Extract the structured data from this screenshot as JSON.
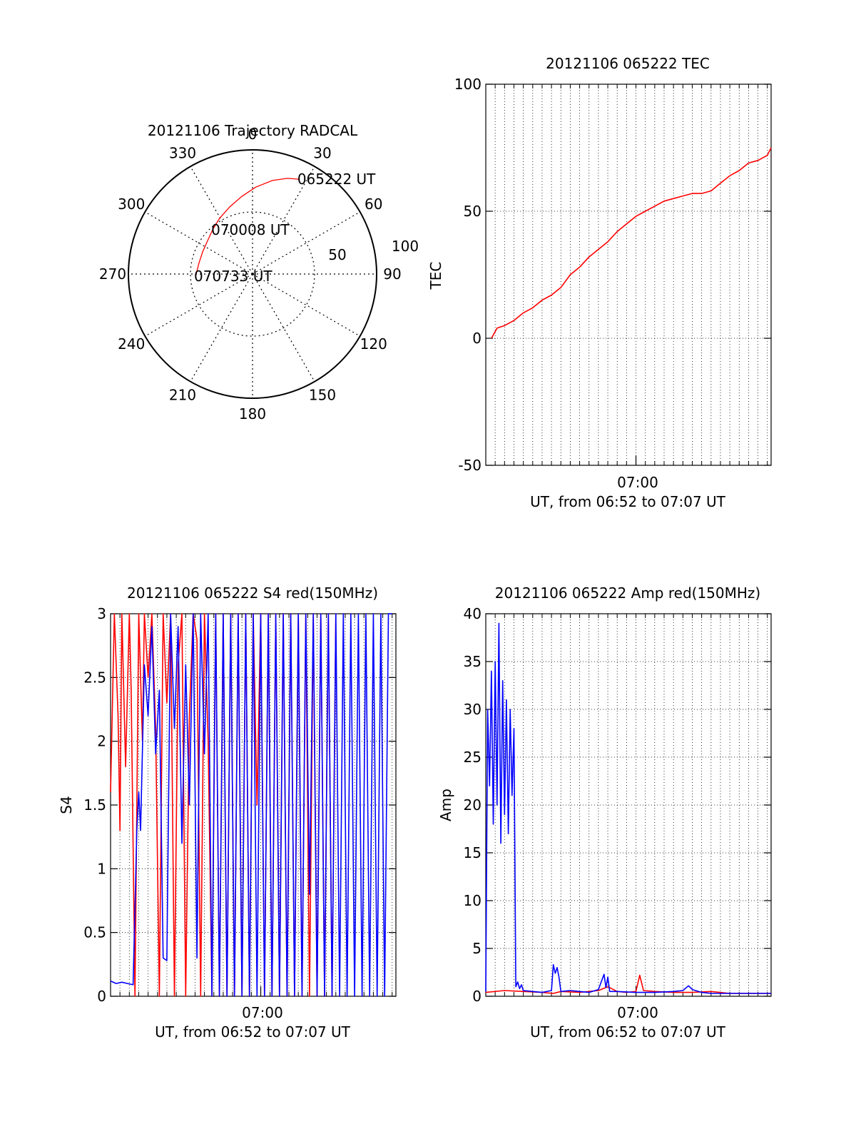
{
  "colors": {
    "red": "#ff0000",
    "blue": "#0000ff",
    "axis": "#000000"
  },
  "chart_data": [
    {
      "id": "trajectory",
      "type": "polar",
      "title": "20121106 Trajectory RADCAL",
      "angle_labels": [
        "0",
        "30",
        "60",
        "90",
        "120",
        "150",
        "180",
        "210",
        "240",
        "270",
        "300",
        "330"
      ],
      "radial_labels": [
        "50",
        "100"
      ],
      "radial_max": 100,
      "series": [
        {
          "color": "red",
          "points": [
            [
              26,
              85
            ],
            [
              20,
              82
            ],
            [
              12,
              77
            ],
            [
              2,
              70
            ],
            [
              -8,
              63
            ],
            [
              -19,
              57
            ],
            [
              -31,
              52
            ],
            [
              -42,
              48
            ],
            [
              -54,
              45
            ],
            [
              -66,
              44
            ],
            [
              -78,
              44
            ],
            [
              -88,
              45
            ],
            [
              -92,
              46
            ]
          ]
        }
      ],
      "annotations": [
        {
          "text": "065222 UT",
          "az": 26,
          "r": 85
        },
        {
          "text": "070008 UT",
          "az": -42,
          "r": 48
        },
        {
          "text": "070733 UT",
          "az": -92,
          "r": 46
        }
      ]
    },
    {
      "id": "tec",
      "type": "line",
      "title": "20121106 065222 TEC",
      "ylabel": "TEC",
      "xlabel": "UT, from 06:52 to 07:07 UT",
      "xtick_label": "07:00",
      "xlim": [
        0,
        15.2
      ],
      "xtick_value": 8,
      "ylim": [
        -50,
        100
      ],
      "yticks": [
        -50,
        0,
        50,
        100
      ],
      "series": [
        {
          "color": "red",
          "x": [
            0.3,
            0.6,
            1.0,
            1.5,
            2.0,
            2.5,
            3.0,
            3.5,
            4.0,
            4.5,
            5.0,
            5.5,
            6.0,
            6.5,
            7.0,
            7.5,
            8.0,
            8.5,
            9.0,
            9.5,
            10.0,
            10.5,
            11.0,
            11.5,
            12.0,
            12.5,
            13.0,
            13.5,
            14.0,
            14.5,
            15.0,
            15.2
          ],
          "y": [
            0,
            4,
            5,
            7,
            10,
            12,
            15,
            17,
            20,
            25,
            28,
            32,
            35,
            38,
            42,
            45,
            48,
            50,
            52,
            54,
            55,
            56,
            57,
            57,
            58,
            61,
            64,
            66,
            69,
            70,
            72,
            75
          ]
        }
      ]
    },
    {
      "id": "s4",
      "type": "line",
      "title": "20121106 065222 S4 red(150MHz)",
      "ylabel": "S4",
      "xlabel": "UT, from 06:52 to 07:07 UT",
      "xtick_label": "07:00",
      "xlim": [
        0,
        15.2
      ],
      "xtick_value": 8,
      "ylim": [
        0,
        3
      ],
      "yticks": [
        0,
        0.5,
        1,
        1.5,
        2,
        2.5,
        3
      ],
      "ytick_labels": [
        "0",
        "0.5",
        "1",
        "1.5",
        "2",
        "2.5",
        "3"
      ],
      "series": [
        {
          "color": "red",
          "x": [
            0.0,
            0.2,
            0.4,
            0.5,
            0.6,
            0.8,
            1.0,
            1.1,
            1.3,
            1.5,
            1.7,
            1.8,
            2.0,
            2.2,
            2.4,
            2.6,
            2.8,
            3.0,
            3.2,
            3.4,
            3.6,
            3.8,
            4.0,
            4.2,
            4.4,
            4.6,
            4.8,
            5.0,
            5.2,
            5.4,
            5.6,
            5.8,
            6.0,
            6.2,
            6.4,
            6.6,
            6.8,
            7.0,
            7.2,
            7.4,
            7.6,
            7.8,
            8.0,
            8.2,
            8.4,
            8.6,
            8.8,
            9.0,
            9.2,
            9.4,
            9.6,
            9.8,
            10.0,
            10.2,
            10.4,
            10.6,
            10.8,
            11.0,
            11.2,
            11.4,
            11.6,
            11.8,
            12.0
          ],
          "y": [
            1.6,
            3.0,
            2.2,
            1.3,
            3.0,
            1.8,
            3.0,
            2.4,
            0.0,
            3.0,
            2.0,
            3.0,
            2.5,
            3.0,
            2.1,
            0.0,
            3.0,
            2.3,
            3.0,
            0.0,
            2.6,
            3.0,
            0.0,
            2.2,
            3.0,
            2.8,
            0.0,
            3.0,
            2.0,
            0.0,
            3.0,
            0.0,
            3.0,
            0.0,
            3.0,
            0.0,
            3.0,
            0.0,
            3.0,
            0.0,
            3.0,
            1.5,
            3.0,
            0.0,
            3.0,
            0.0,
            3.0,
            0.0,
            3.0,
            0.0,
            3.0,
            0.0,
            3.0,
            0.0,
            3.0,
            0.0,
            3.0,
            0.0,
            3.0,
            0.0,
            3.0,
            0.0,
            3.0
          ]
        },
        {
          "color": "blue",
          "x": [
            0.0,
            0.3,
            0.6,
            0.9,
            1.2,
            1.4,
            1.5,
            1.6,
            1.8,
            2.0,
            2.2,
            2.4,
            2.6,
            2.8,
            3.0,
            3.2,
            3.4,
            3.6,
            3.8,
            4.0,
            4.2,
            4.4,
            4.6,
            4.8,
            5.0,
            5.2,
            5.4,
            5.6,
            5.8,
            6.0,
            6.2,
            6.4,
            6.6,
            6.8,
            7.0,
            7.2,
            7.4,
            7.6,
            7.8,
            8.0,
            8.2,
            8.4,
            8.6,
            8.8,
            9.0,
            9.2,
            9.4,
            9.6,
            9.8,
            10.0,
            10.2,
            10.4,
            10.6,
            10.8,
            11.0,
            11.2,
            11.4,
            11.6,
            11.8,
            12.0,
            12.2,
            12.4,
            12.6,
            12.8,
            13.0,
            13.2,
            13.4,
            13.6,
            13.8,
            14.0,
            14.2,
            14.4,
            14.6,
            14.8,
            15.0
          ],
          "y": [
            0.12,
            0.1,
            0.11,
            0.1,
            0.09,
            1.3,
            1.6,
            1.3,
            2.6,
            2.2,
            2.9,
            1.9,
            2.4,
            0.3,
            0.28,
            3.0,
            2.1,
            2.9,
            1.2,
            2.6,
            1.5,
            3.0,
            0.3,
            3.0,
            1.9,
            3.0,
            0.0,
            3.0,
            0.0,
            3.0,
            0.0,
            3.0,
            0.0,
            3.0,
            0.0,
            3.0,
            0.0,
            3.0,
            0.0,
            3.0,
            0.0,
            3.0,
            0.0,
            3.0,
            0.0,
            3.0,
            0.0,
            3.0,
            0.0,
            3.0,
            0.0,
            3.0,
            0.8,
            3.0,
            0.0,
            3.0,
            0.0,
            3.0,
            0.0,
            3.0,
            0.0,
            3.0,
            0.0,
            3.0,
            0.0,
            3.0,
            0.0,
            3.0,
            0.0,
            3.0,
            0.0,
            3.0,
            0.0,
            3.0,
            3.0
          ]
        }
      ]
    },
    {
      "id": "amp",
      "type": "line",
      "title": "20121106 065222 Amp red(150MHz)",
      "ylabel": "Amp",
      "xlabel": "UT, from 06:52 to 07:07 UT",
      "xtick_label": "07:00",
      "xlim": [
        0,
        15.2
      ],
      "xtick_value": 8,
      "ylim": [
        0,
        40
      ],
      "yticks": [
        0,
        5,
        10,
        15,
        20,
        25,
        30,
        35,
        40
      ],
      "series": [
        {
          "color": "red",
          "x": [
            0.0,
            1.0,
            2.0,
            3.0,
            3.6,
            4.0,
            5.0,
            6.0,
            6.5,
            7.0,
            7.5,
            8.0,
            8.2,
            8.4,
            9.0,
            10.0,
            11.0,
            12.0,
            13.0,
            14.0,
            15.2
          ],
          "y": [
            0.4,
            0.6,
            0.5,
            0.4,
            0.3,
            0.5,
            0.4,
            0.6,
            1.0,
            0.5,
            0.4,
            0.5,
            2.2,
            0.6,
            0.5,
            0.4,
            0.4,
            0.5,
            0.3,
            0.3,
            0.3
          ]
        },
        {
          "color": "blue",
          "x": [
            0.0,
            0.1,
            0.2,
            0.3,
            0.4,
            0.5,
            0.6,
            0.7,
            0.8,
            0.9,
            1.0,
            1.1,
            1.2,
            1.3,
            1.4,
            1.5,
            1.6,
            1.7,
            1.8,
            1.9,
            2.0,
            2.5,
            3.0,
            3.5,
            3.6,
            3.7,
            3.8,
            3.9,
            4.0,
            4.5,
            5.0,
            5.5,
            6.0,
            6.3,
            6.4,
            6.5,
            6.6,
            7.0,
            8.0,
            9.0,
            10.0,
            10.5,
            10.8,
            11.0,
            11.5,
            12.0,
            13.0,
            14.0,
            15.2
          ],
          "y": [
            0.5,
            30,
            22,
            34,
            18,
            35,
            20,
            39,
            16,
            33,
            19,
            31,
            17,
            30,
            21,
            28,
            1.0,
            1.5,
            0.8,
            1.2,
            0.6,
            0.5,
            0.4,
            0.6,
            3.3,
            2.4,
            3.0,
            2.0,
            0.5,
            0.6,
            0.5,
            0.4,
            0.7,
            2.3,
            0.9,
            2.0,
            0.5,
            0.5,
            0.4,
            0.4,
            0.5,
            0.6,
            1.1,
            0.7,
            0.4,
            0.3,
            0.3,
            0.3,
            0.3
          ]
        }
      ]
    }
  ]
}
